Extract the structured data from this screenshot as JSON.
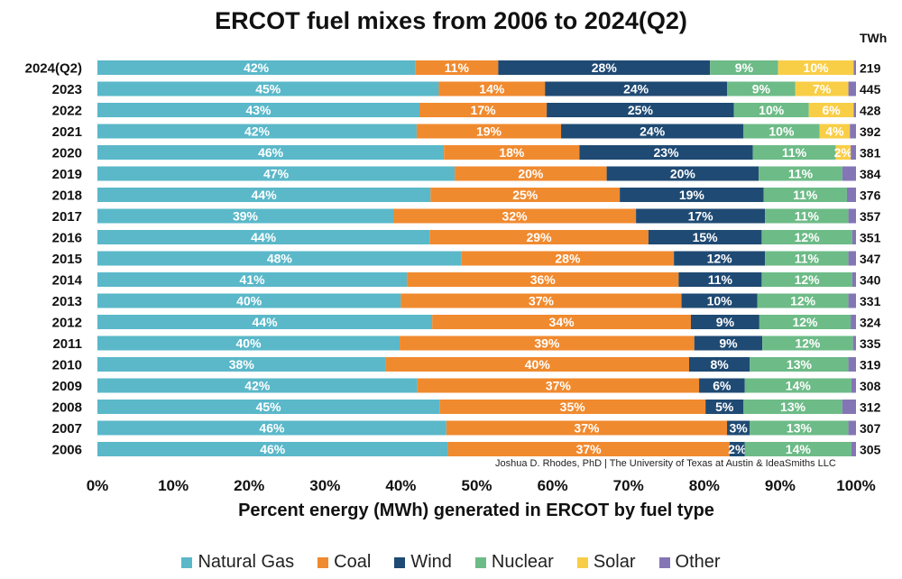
{
  "chart_data": {
    "type": "bar",
    "orientation": "horizontal",
    "stacked": true,
    "title": "ERCOT fuel mixes from 2006 to 2024(Q2)",
    "xlabel": "Percent energy (MWh) generated in ERCOT by fuel type",
    "ylabel": "",
    "xlim": [
      0,
      100
    ],
    "x_ticks": [
      "0%",
      "10%",
      "20%",
      "30%",
      "40%",
      "50%",
      "60%",
      "70%",
      "80%",
      "90%",
      "100%"
    ],
    "right_axis_header": "TWh",
    "credit": "Joshua D. Rhodes, PhD | The University of Texas at Austin & IdeaSmiths LLC",
    "legend_position": "bottom",
    "categories": [
      "2024(Q2)",
      "2023",
      "2022",
      "2021",
      "2020",
      "2019",
      "2018",
      "2017",
      "2016",
      "2015",
      "2014",
      "2013",
      "2012",
      "2011",
      "2010",
      "2009",
      "2008",
      "2007",
      "2006"
    ],
    "twh": [
      "219",
      "445",
      "428",
      "392",
      "381",
      "384",
      "376",
      "357",
      "351",
      "347",
      "340",
      "331",
      "324",
      "335",
      "319",
      "308",
      "312",
      "307",
      "305"
    ],
    "series": [
      {
        "name": "Natural Gas",
        "color": "#5ab8c9",
        "values": [
          42,
          45,
          43,
          42,
          46,
          47,
          44,
          39,
          44,
          48,
          41,
          40,
          44,
          40,
          38,
          42,
          45,
          46,
          46
        ],
        "labels": [
          "42%",
          "45%",
          "43%",
          "42%",
          "46%",
          "47%",
          "44%",
          "39%",
          "44%",
          "48%",
          "41%",
          "40%",
          "44%",
          "40%",
          "38%",
          "42%",
          "45%",
          "46%",
          "46%"
        ]
      },
      {
        "name": "Coal",
        "color": "#f08a2f",
        "values": [
          11,
          14,
          17,
          19,
          18,
          20,
          25,
          32,
          29,
          28,
          36,
          37,
          34,
          39,
          40,
          37,
          35,
          37,
          37
        ],
        "labels": [
          "11%",
          "14%",
          "17%",
          "19%",
          "18%",
          "20%",
          "25%",
          "32%",
          "29%",
          "28%",
          "36%",
          "37%",
          "34%",
          "39%",
          "40%",
          "37%",
          "35%",
          "37%",
          "37%"
        ]
      },
      {
        "name": "Wind",
        "color": "#1f4a73",
        "values": [
          28,
          24,
          25,
          24,
          23,
          20,
          19,
          17,
          15,
          12,
          11,
          10,
          9,
          9,
          8,
          6,
          5,
          3,
          2
        ],
        "labels": [
          "28%",
          "24%",
          "25%",
          "24%",
          "23%",
          "20%",
          "19%",
          "17%",
          "15%",
          "12%",
          "11%",
          "10%",
          "9%",
          "9%",
          "8%",
          "6%",
          "5%",
          "3%",
          "2%"
        ]
      },
      {
        "name": "Nuclear",
        "color": "#6dbb87",
        "values": [
          9,
          9,
          10,
          10,
          11,
          11,
          11,
          11,
          12,
          11,
          12,
          12,
          12,
          12,
          13,
          14,
          13,
          13,
          14
        ],
        "labels": [
          "9%",
          "9%",
          "10%",
          "10%",
          "11%",
          "11%",
          "11%",
          "11%",
          "12%",
          "11%",
          "12%",
          "12%",
          "12%",
          "12%",
          "13%",
          "14%",
          "13%",
          "13%",
          "14%"
        ]
      },
      {
        "name": "Solar",
        "color": "#f9ce47",
        "values": [
          10,
          7,
          6,
          4,
          2,
          0,
          0,
          0,
          0,
          0,
          0,
          0,
          0,
          0,
          0,
          0,
          0,
          0,
          0
        ],
        "labels": [
          "10%",
          "7%",
          "6%",
          "4%",
          "2%",
          "",
          "",
          "",
          "",
          "",
          "",
          "",
          "",
          "",
          "",
          "",
          "",
          "",
          ""
        ]
      },
      {
        "name": "Other",
        "color": "#8476b5",
        "values": [
          0.3,
          1,
          0.3,
          0.8,
          0.7,
          1.8,
          1.2,
          1,
          0.5,
          1,
          0.5,
          1,
          0.7,
          0.4,
          1,
          0.6,
          1.8,
          1,
          0.6
        ],
        "labels": [
          "",
          "",
          "",
          "",
          "",
          "",
          "",
          "",
          "",
          "",
          "",
          "",
          "",
          "",
          "",
          "",
          "",
          "",
          ""
        ]
      }
    ]
  }
}
